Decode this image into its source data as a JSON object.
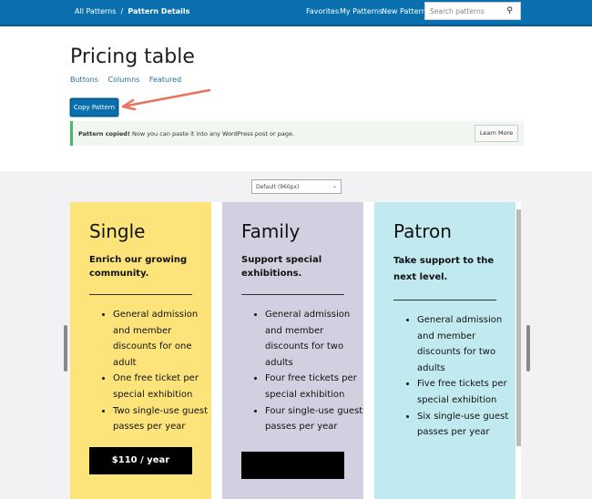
{
  "header": {
    "breadcrumb_root": "All Patterns",
    "breadcrumb_sep": "/",
    "breadcrumb_current": "Pattern Details",
    "nav": [
      "Favorites",
      "My Patterns",
      "New Pattern"
    ],
    "search_placeholder": "Search patterns"
  },
  "page": {
    "title": "Pricing table",
    "tags": [
      "Buttons",
      "Columns",
      "Featured"
    ],
    "copy_label": "Copy Pattern"
  },
  "notice": {
    "strong": "Pattern copied!",
    "text": " Now you can paste it into any WordPress post or page.",
    "learn_more": "Learn More"
  },
  "preview": {
    "width_select": "Default (960px)",
    "columns": [
      {
        "title": "Single",
        "subtitle": "Enrich our growing community.",
        "items": [
          "General admission and member discounts for one adult",
          "One free ticket per special exhibition",
          "Two single-use guest passes per year"
        ],
        "price": "$110 / year",
        "color": "#fde47a"
      },
      {
        "title": "Family",
        "subtitle": "Support special exhibitions.",
        "items": [
          "General admission and member discounts for two adults",
          "Four free tickets per special exhibition",
          "Four single-use guest passes per year"
        ],
        "price": "",
        "color": "#d1d0e0"
      },
      {
        "title": "Patron",
        "subtitle": "Take support to the next level.",
        "items": [
          "General admission and member discounts for two adults",
          "Five free tickets per special exhibition",
          "Six single-use guest passes per year"
        ],
        "price": "",
        "color": "#c0eaf0"
      }
    ]
  },
  "colors": {
    "header": "#0a70ad",
    "arrow": "#e8735a",
    "notice_border": "#4ab866"
  }
}
